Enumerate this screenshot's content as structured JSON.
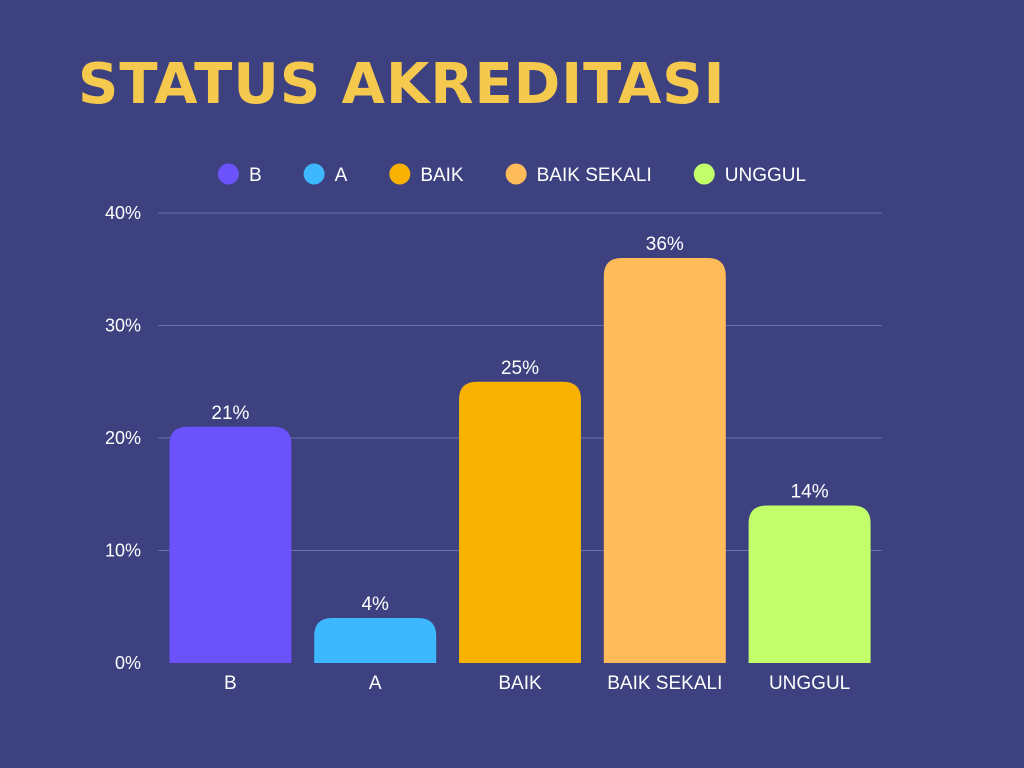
{
  "chart_data": {
    "type": "bar",
    "title": "STATUS AKREDITASI",
    "categories": [
      "B",
      "A",
      "BAIK",
      "BAIK SEKALI",
      "UNGGUL"
    ],
    "values": [
      21,
      4,
      25,
      36,
      14
    ],
    "value_labels": [
      "21%",
      "4%",
      "25%",
      "36%",
      "14%"
    ],
    "colors": [
      "#6b52fb",
      "#3db7fd",
      "#f9b204",
      "#fdbb5a",
      "#c2fd6a"
    ],
    "legend": {
      "placement": "top",
      "entries": [
        "B",
        "A",
        "BAIK",
        "BAIK SEKALI",
        "UNGGUL"
      ]
    },
    "y_ticks": [
      "0%",
      "10%",
      "20%",
      "30%",
      "40%"
    ],
    "y_tick_values": [
      0,
      10,
      20,
      30,
      40
    ],
    "ylim": [
      0,
      40
    ],
    "grid": true
  },
  "colors": {
    "background": "#3d4180",
    "title": "#f5c94e",
    "text": "#ffffff",
    "grid": "#6c70a8"
  }
}
